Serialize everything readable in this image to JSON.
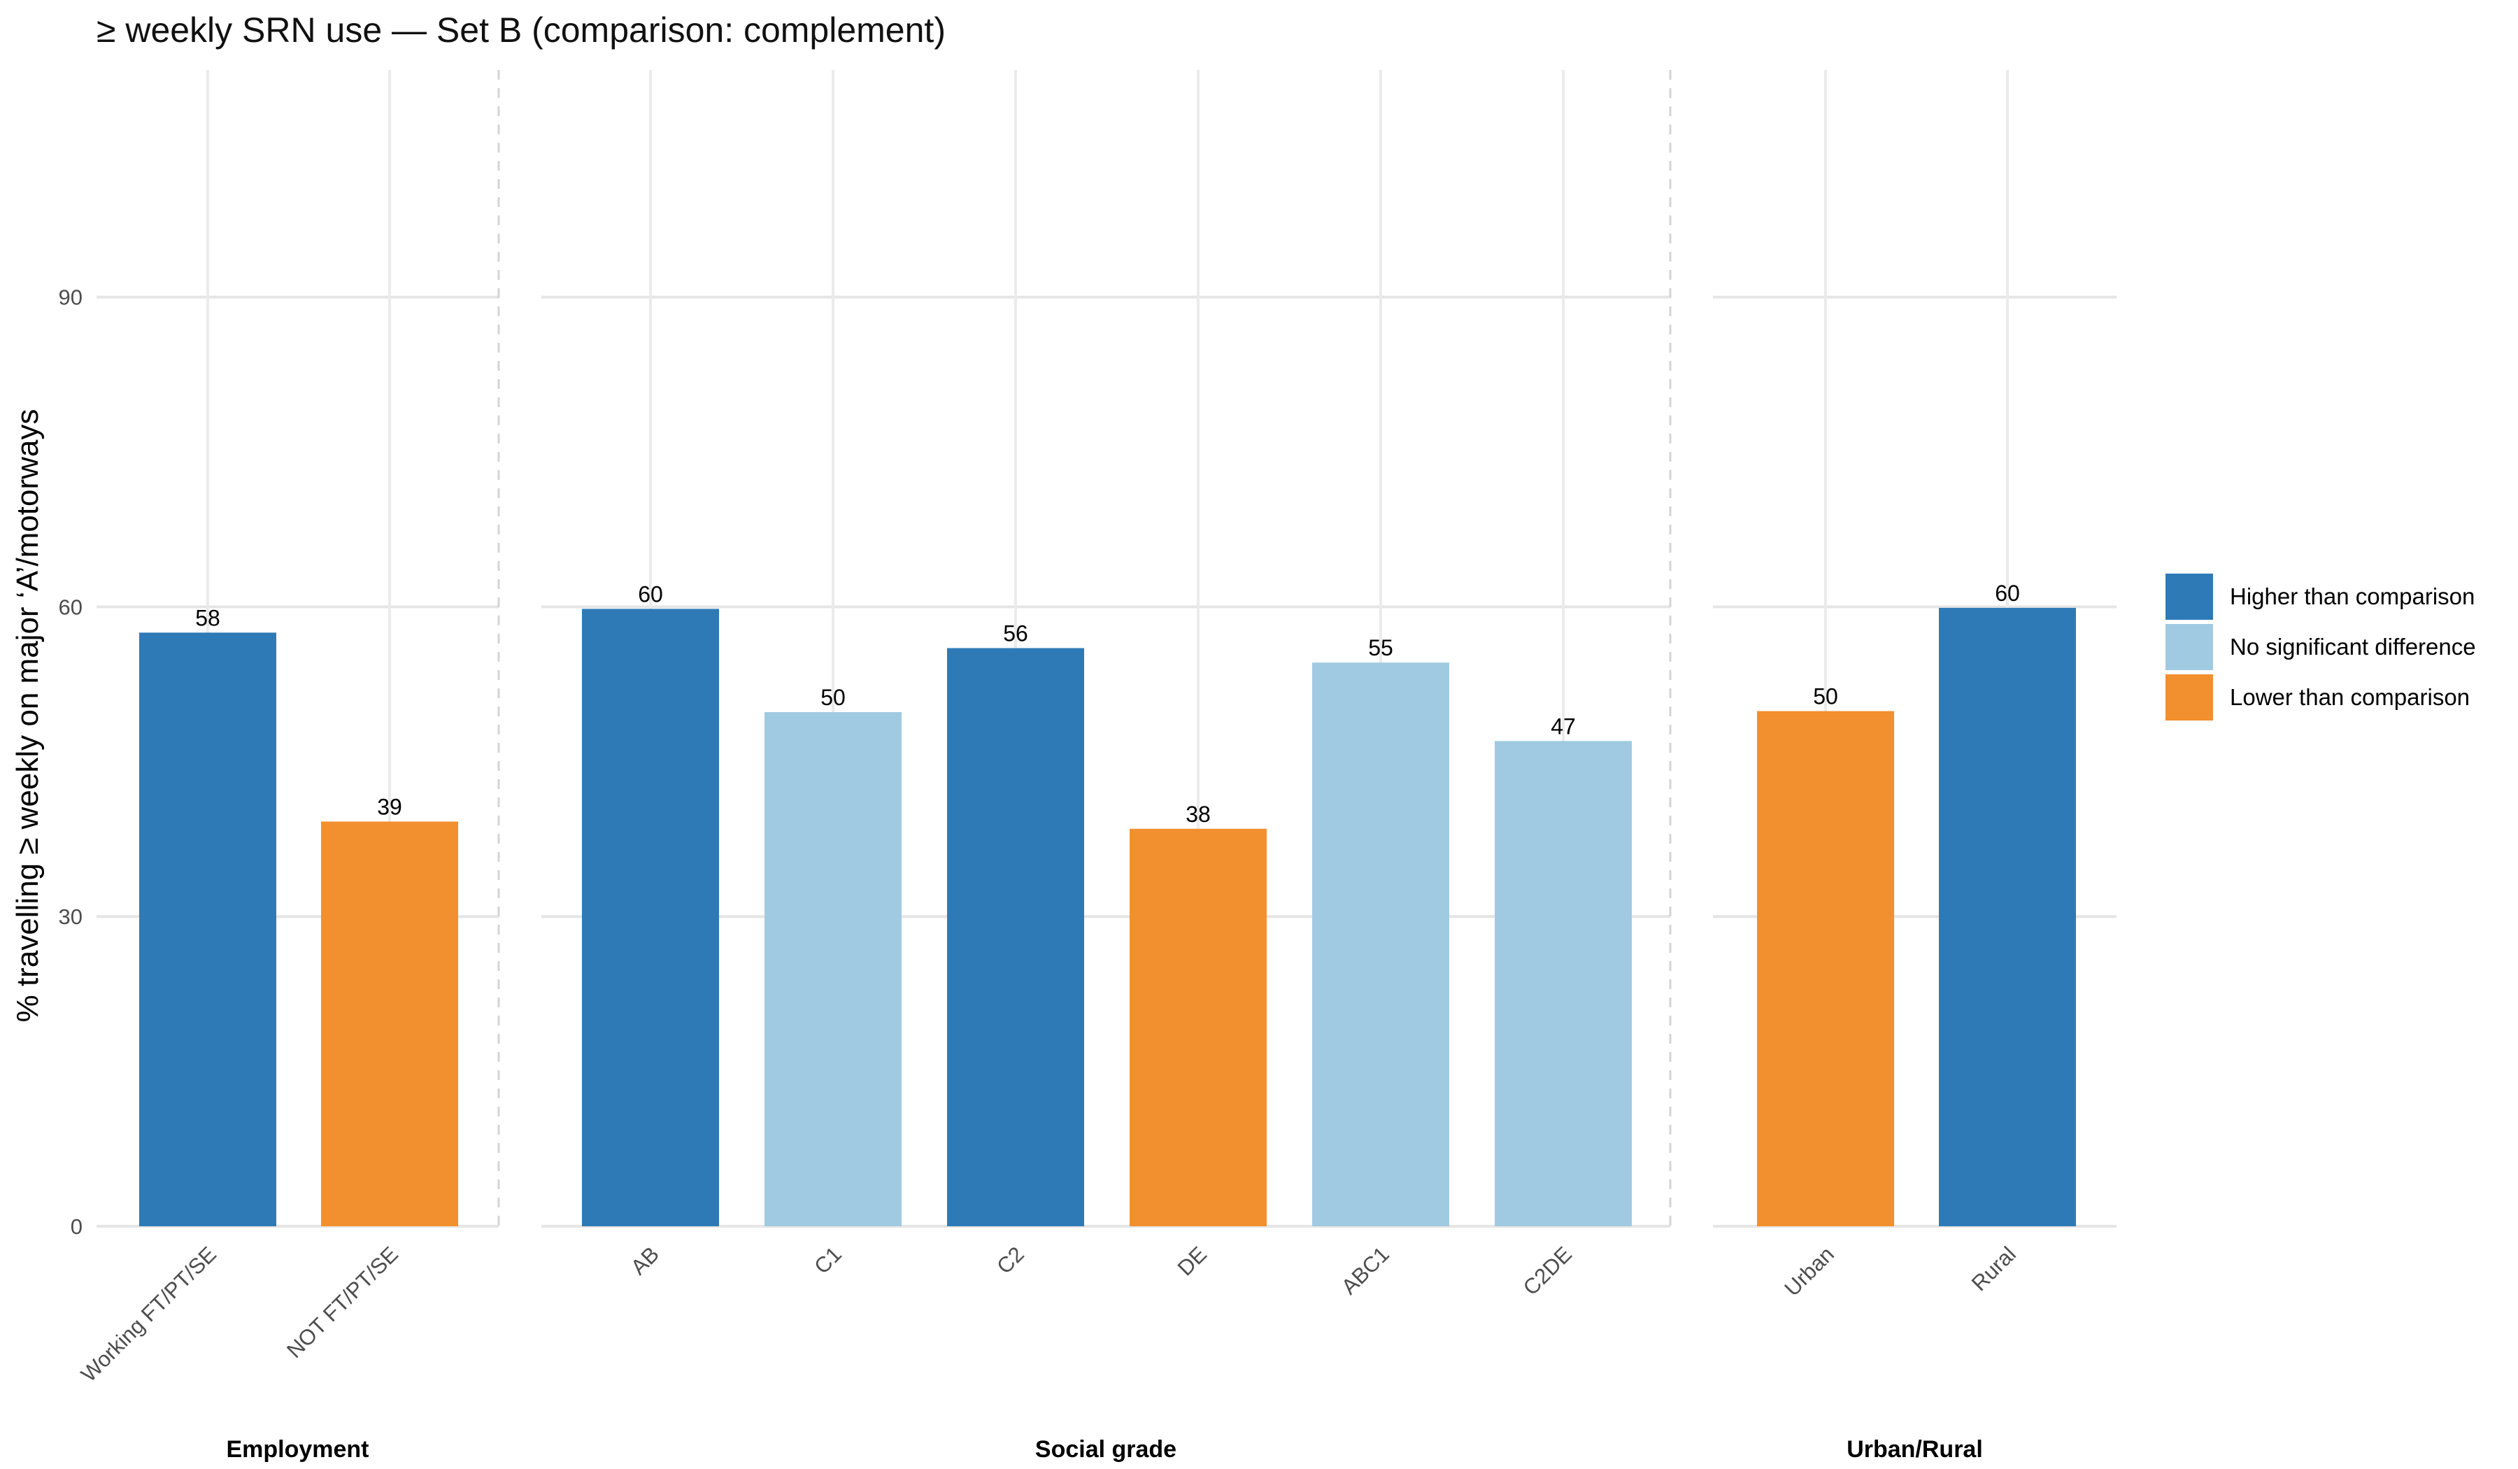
{
  "chart_data": {
    "type": "bar",
    "title": "≥ weekly SRN use — Set B (comparison: complement)",
    "ylabel": "% travelling ≥ weekly on major ‘A’/motorways",
    "xlabel": "",
    "ylim": [
      0,
      112
    ],
    "yticks": [
      0,
      30,
      60,
      90
    ],
    "grid": true,
    "legend_position": "right",
    "legend": [
      {
        "key": "higher",
        "label": "Higher than comparison",
        "color": "#2E7AB6"
      },
      {
        "key": "nodiff",
        "label": "No significant difference",
        "color": "#A0CAE1"
      },
      {
        "key": "lower",
        "label": "Lower than comparison",
        "color": "#F28F2E"
      }
    ],
    "facets": [
      {
        "name": "Employment",
        "categories": [
          "Working FT/PT/SE",
          "NOT FT/PT/SE"
        ],
        "values": [
          57.5,
          39.2
        ],
        "labels": [
          "58",
          "39"
        ],
        "status": [
          "higher",
          "lower"
        ]
      },
      {
        "name": "Social grade",
        "categories": [
          "AB",
          "C1",
          "C2",
          "DE",
          "ABC1",
          "C2DE"
        ],
        "values": [
          59.8,
          49.8,
          56.0,
          38.5,
          54.6,
          47.0
        ],
        "labels": [
          "60",
          "50",
          "56",
          "38",
          "55",
          "47"
        ],
        "status": [
          "higher",
          "nodiff",
          "higher",
          "lower",
          "nodiff",
          "nodiff"
        ]
      },
      {
        "name": "Urban/Rural",
        "categories": [
          "Urban",
          "Rural"
        ],
        "values": [
          49.9,
          59.9
        ],
        "labels": [
          "50",
          "60"
        ],
        "status": [
          "lower",
          "higher"
        ]
      }
    ]
  }
}
